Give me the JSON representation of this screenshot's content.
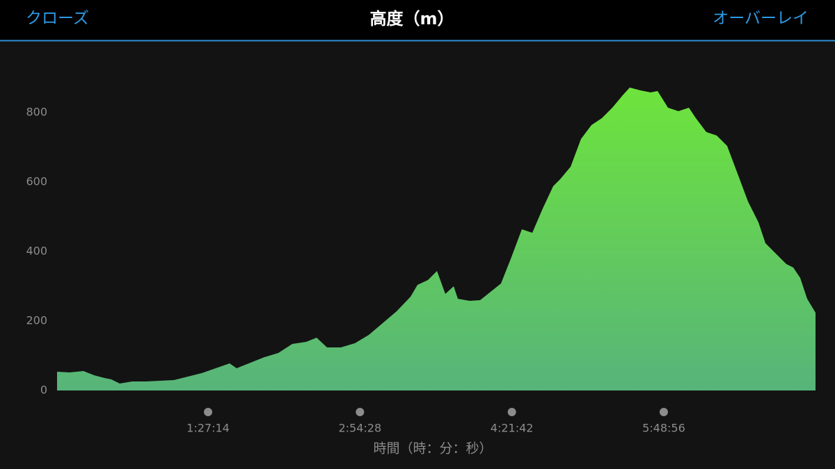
{
  "header": {
    "close": "クローズ",
    "overlay": "オーバーレイ"
  },
  "chart_data": {
    "type": "area",
    "title": "高度（m）",
    "xlabel": "時間（時：分：秒）",
    "color": "#6ee43c",
    "grid": false,
    "x": [
      31,
      463,
      942,
      1302,
      1661,
      1901,
      2189,
      2620,
      3100,
      3579,
      4059,
      4538,
      5018,
      5497,
      5977,
      6217,
      6696,
      7176,
      7655,
      8135,
      8614,
      8974,
      9333,
      9813,
      10293,
      10772,
      11252,
      11731,
      12211,
      12450,
      12810,
      13122,
      13409,
      13697,
      13841,
      14249,
      14608,
      14968,
      15327,
      15687,
      16046,
      16406,
      16766,
      17125,
      17365,
      17725,
      18084,
      18444,
      18804,
      19163,
      19523,
      19763,
      20122,
      20482,
      20722,
      21081,
      21441,
      21800,
      22040,
      22400,
      22759,
      23119,
      23479,
      23838,
      24198,
      24438,
      24797,
      25157,
      25397,
      25637,
      25876,
      26164
    ],
    "values": [
      54,
      52,
      56,
      44,
      36,
      32,
      20,
      26,
      26,
      28,
      30,
      40,
      50,
      64,
      78,
      64,
      80,
      96,
      108,
      134,
      140,
      152,
      124,
      124,
      136,
      160,
      194,
      228,
      270,
      304,
      318,
      344,
      278,
      300,
      264,
      258,
      260,
      284,
      308,
      384,
      464,
      454,
      524,
      588,
      608,
      644,
      724,
      764,
      784,
      814,
      850,
      872,
      864,
      858,
      862,
      814,
      804,
      814,
      784,
      744,
      734,
      704,
      624,
      544,
      484,
      424,
      394,
      364,
      354,
      324,
      264,
      224
    ],
    "xlim": [
      0,
      26164
    ],
    "xticks": [
      {
        "value": 5234,
        "label": "1:27:14"
      },
      {
        "value": 10468,
        "label": "2:54:28"
      },
      {
        "value": 15702,
        "label": "4:21:42"
      },
      {
        "value": 20936,
        "label": "5:48:56"
      }
    ],
    "ylim": [
      0,
      900
    ],
    "yticks": [
      0,
      200,
      400,
      600,
      800
    ]
  }
}
